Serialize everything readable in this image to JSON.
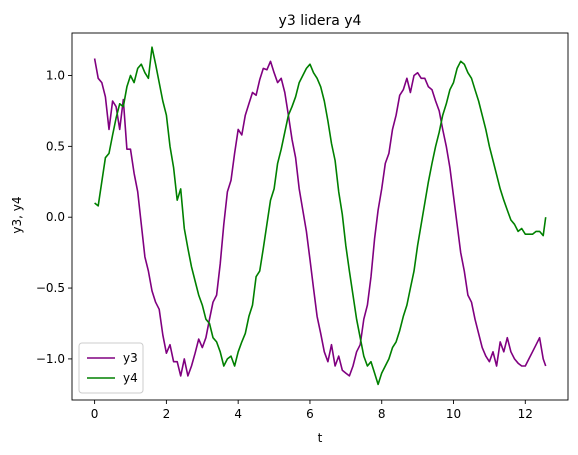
{
  "chart_data": {
    "type": "line",
    "title": "y3 lidera y4",
    "xlabel": "t",
    "ylabel": "y3, y4",
    "xlim": [
      -0.63,
      13.19
    ],
    "ylim": [
      -1.29,
      1.3
    ],
    "xticks": [
      0,
      2,
      4,
      6,
      8,
      10,
      12
    ],
    "yticks": [
      -1.0,
      -0.5,
      0.0,
      0.5,
      1.0
    ],
    "xtick_labels": [
      "0",
      "2",
      "4",
      "6",
      "8",
      "10",
      "12"
    ],
    "ytick_labels": [
      "−1.0",
      "−0.5",
      "0.0",
      "0.5",
      "1.0"
    ],
    "grid": false,
    "legend_position": "lower-left",
    "series": [
      {
        "name": "y3",
        "color": "#800080",
        "x": [
          0.0,
          0.1,
          0.2,
          0.3,
          0.4,
          0.5,
          0.6,
          0.7,
          0.8,
          0.9,
          1.0,
          1.1,
          1.2,
          1.3,
          1.4,
          1.5,
          1.6,
          1.7,
          1.8,
          1.9,
          2.0,
          2.1,
          2.2,
          2.3,
          2.4,
          2.5,
          2.6,
          2.7,
          2.8,
          2.9,
          3.0,
          3.1,
          3.2,
          3.3,
          3.4,
          3.5,
          3.6,
          3.7,
          3.8,
          3.9,
          4.0,
          4.1,
          4.2,
          4.3,
          4.4,
          4.5,
          4.6,
          4.7,
          4.8,
          4.9,
          5.0,
          5.1,
          5.2,
          5.3,
          5.4,
          5.5,
          5.6,
          5.7,
          5.8,
          5.9,
          6.0,
          6.1,
          6.2,
          6.3,
          6.4,
          6.5,
          6.6,
          6.7,
          6.8,
          6.9,
          7.0,
          7.1,
          7.2,
          7.3,
          7.4,
          7.5,
          7.6,
          7.7,
          7.8,
          7.9,
          8.0,
          8.1,
          8.2,
          8.3,
          8.4,
          8.5,
          8.6,
          8.7,
          8.8,
          8.9,
          9.0,
          9.1,
          9.2,
          9.3,
          9.4,
          9.5,
          9.6,
          9.7,
          9.8,
          9.9,
          10.0,
          10.1,
          10.2,
          10.3,
          10.4,
          10.5,
          10.6,
          10.7,
          10.8,
          10.9,
          11.0,
          11.1,
          11.2,
          11.3,
          11.4,
          11.5,
          11.6,
          11.7,
          11.8,
          11.9,
          12.0,
          12.1,
          12.2,
          12.3,
          12.4,
          12.5,
          12.57
        ],
        "y": [
          1.12,
          0.98,
          0.95,
          0.85,
          0.62,
          0.82,
          0.78,
          0.62,
          0.83,
          0.48,
          0.48,
          0.31,
          0.18,
          -0.05,
          -0.28,
          -0.38,
          -0.52,
          -0.6,
          -0.65,
          -0.83,
          -0.96,
          -0.9,
          -1.02,
          -1.02,
          -1.12,
          -1.0,
          -1.12,
          -1.05,
          -0.96,
          -0.86,
          -0.92,
          -0.85,
          -0.72,
          -0.6,
          -0.55,
          -0.33,
          -0.05,
          0.18,
          0.26,
          0.45,
          0.62,
          0.58,
          0.72,
          0.8,
          0.88,
          0.86,
          0.97,
          1.05,
          1.04,
          1.1,
          1.02,
          0.95,
          0.98,
          0.88,
          0.72,
          0.55,
          0.42,
          0.2,
          0.05,
          -0.1,
          -0.3,
          -0.5,
          -0.7,
          -0.82,
          -0.95,
          -1.02,
          -0.9,
          -1.05,
          -0.98,
          -1.08,
          -1.1,
          -1.12,
          -1.05,
          -0.95,
          -0.9,
          -0.72,
          -0.62,
          -0.42,
          -0.15,
          0.05,
          0.2,
          0.38,
          0.45,
          0.62,
          0.72,
          0.86,
          0.9,
          0.98,
          0.88,
          1.0,
          1.02,
          0.98,
          0.98,
          0.92,
          0.9,
          0.82,
          0.75,
          0.62,
          0.5,
          0.35,
          0.15,
          -0.05,
          -0.25,
          -0.38,
          -0.55,
          -0.6,
          -0.72,
          -0.82,
          -0.92,
          -0.98,
          -1.02,
          -0.95,
          -1.05,
          -0.88,
          -0.95,
          -0.85,
          -0.95,
          -1.0,
          -1.03,
          -1.05,
          -1.05,
          -1.0,
          -0.95,
          -0.9,
          -0.85,
          -1.0,
          -1.05
        ]
      },
      {
        "name": "y4",
        "color": "#008000",
        "x": [
          0.0,
          0.1,
          0.2,
          0.3,
          0.4,
          0.5,
          0.6,
          0.7,
          0.8,
          0.9,
          1.0,
          1.1,
          1.2,
          1.3,
          1.4,
          1.5,
          1.6,
          1.7,
          1.8,
          1.9,
          2.0,
          2.1,
          2.2,
          2.3,
          2.4,
          2.5,
          2.6,
          2.7,
          2.8,
          2.9,
          3.0,
          3.1,
          3.2,
          3.3,
          3.4,
          3.5,
          3.6,
          3.7,
          3.8,
          3.9,
          4.0,
          4.1,
          4.2,
          4.3,
          4.4,
          4.5,
          4.6,
          4.7,
          4.8,
          4.9,
          5.0,
          5.1,
          5.2,
          5.3,
          5.4,
          5.5,
          5.6,
          5.7,
          5.8,
          5.9,
          6.0,
          6.1,
          6.2,
          6.3,
          6.4,
          6.5,
          6.6,
          6.7,
          6.8,
          6.9,
          7.0,
          7.1,
          7.2,
          7.3,
          7.4,
          7.5,
          7.6,
          7.7,
          7.8,
          7.9,
          8.0,
          8.1,
          8.2,
          8.3,
          8.4,
          8.5,
          8.6,
          8.7,
          8.8,
          8.9,
          9.0,
          9.1,
          9.2,
          9.3,
          9.4,
          9.5,
          9.6,
          9.7,
          9.8,
          9.9,
          10.0,
          10.1,
          10.2,
          10.3,
          10.4,
          10.5,
          10.6,
          10.7,
          10.8,
          10.9,
          11.0,
          11.1,
          11.2,
          11.3,
          11.4,
          11.5,
          11.6,
          11.7,
          11.8,
          11.9,
          12.0,
          12.1,
          12.2,
          12.3,
          12.4,
          12.5,
          12.57
        ],
        "y": [
          0.1,
          0.08,
          0.25,
          0.42,
          0.45,
          0.58,
          0.7,
          0.8,
          0.78,
          0.92,
          1.0,
          0.95,
          1.05,
          1.08,
          1.02,
          0.98,
          1.2,
          1.08,
          0.95,
          0.82,
          0.72,
          0.5,
          0.35,
          0.12,
          0.2,
          -0.08,
          -0.22,
          -0.35,
          -0.45,
          -0.55,
          -0.62,
          -0.72,
          -0.75,
          -0.85,
          -0.88,
          -0.95,
          -1.05,
          -1.0,
          -0.98,
          -1.05,
          -0.95,
          -0.88,
          -0.82,
          -0.7,
          -0.62,
          -0.42,
          -0.38,
          -0.22,
          -0.05,
          0.12,
          0.2,
          0.38,
          0.48,
          0.6,
          0.72,
          0.78,
          0.85,
          0.95,
          1.0,
          1.05,
          1.08,
          1.02,
          0.98,
          0.92,
          0.82,
          0.68,
          0.52,
          0.4,
          0.18,
          0.02,
          -0.2,
          -0.38,
          -0.55,
          -0.72,
          -0.85,
          -0.98,
          -1.05,
          -1.02,
          -1.1,
          -1.18,
          -1.1,
          -1.05,
          -1.0,
          -0.92,
          -0.88,
          -0.8,
          -0.7,
          -0.62,
          -0.5,
          -0.38,
          -0.2,
          -0.05,
          0.1,
          0.25,
          0.38,
          0.5,
          0.6,
          0.72,
          0.8,
          0.9,
          0.95,
          1.05,
          1.1,
          1.08,
          1.02,
          0.98,
          0.9,
          0.82,
          0.72,
          0.62,
          0.5,
          0.4,
          0.3,
          0.2,
          0.12,
          0.05,
          -0.02,
          -0.05,
          -0.1,
          -0.08,
          -0.12,
          -0.12,
          -0.12,
          -0.1,
          -0.1,
          -0.13,
          0.0
        ]
      }
    ]
  }
}
